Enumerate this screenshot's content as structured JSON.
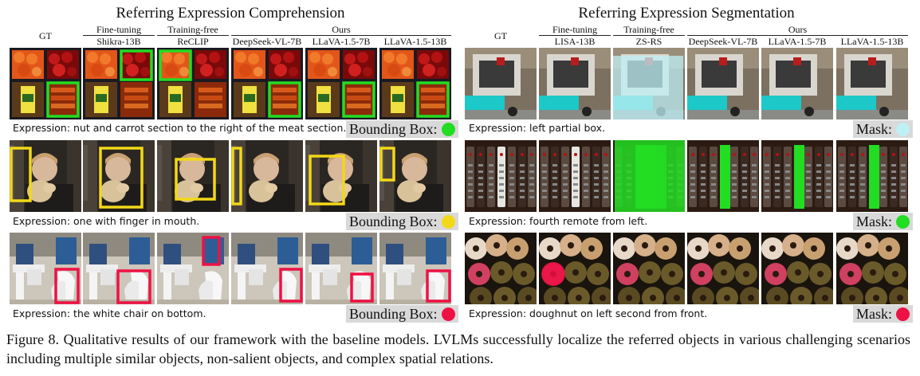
{
  "rec": {
    "title": "Referring Expression Comprehension",
    "gt_label": "GT",
    "groups": [
      "Fine-tuning",
      "Training-free",
      "Ours"
    ],
    "methods": [
      "Shikra-13B",
      "ReCLIP",
      "DeepSeek-VL-7B",
      "LLaVA-1.5-7B",
      "LLaVA-1.5-13B"
    ],
    "badge_label": "Bounding Box:",
    "rows": [
      {
        "expression": "Expression: nut and carrot section to the right of the meat section.",
        "color": "#22dd22"
      },
      {
        "expression": "Expression: one with finger in mouth.",
        "color": "#f2d818"
      },
      {
        "expression": "Expression: the white chair on bottom.",
        "color": "#ee1144"
      }
    ]
  },
  "res": {
    "title": "Referring Expression Segmentation",
    "gt_label": "GT",
    "groups": [
      "Fine-tuning",
      "Training-free",
      "Ours"
    ],
    "methods": [
      "LISA-13B",
      "ZS-RS",
      "DeepSeek-VL-7B",
      "LLaVA-1.5-7B",
      "LLaVA-1.5-13B"
    ],
    "badge_label": "Mask:",
    "rows": [
      {
        "expression": "Expression: left partial box.",
        "color": "#bff0f5"
      },
      {
        "expression": "Expression: fourth remote from left.",
        "color": "#22dd22"
      },
      {
        "expression": "Expression: doughnut on left second from front.",
        "color": "#ee1144"
      }
    ]
  },
  "caption": "Figure 8. Qualitative results of our framework with the baseline models. LVLMs successfully localize the referred objects in various challenging scenarios including multiple similar objects, non-salient objects, and complex spatial relations."
}
